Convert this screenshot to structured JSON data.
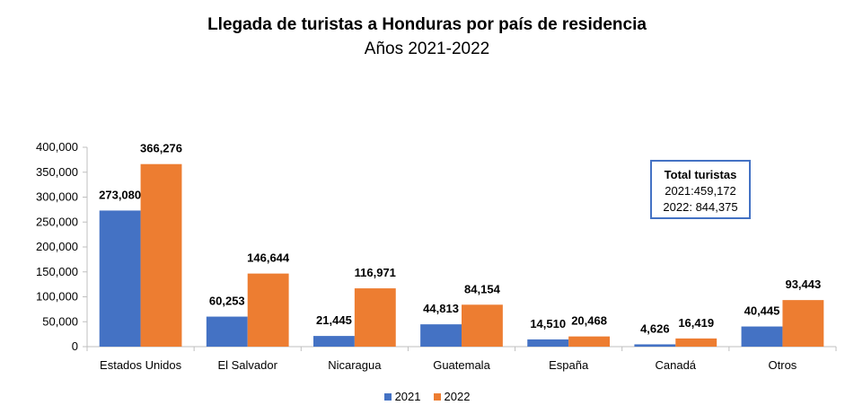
{
  "chart_data": {
    "type": "bar",
    "title": "Llegada de turistas a Honduras por país de residencia",
    "subtitle": "Años 2021-2022",
    "xlabel": "",
    "ylabel": "",
    "ylim": [
      0,
      400000
    ],
    "yticks": [
      0,
      50000,
      100000,
      150000,
      200000,
      250000,
      300000,
      350000,
      400000
    ],
    "ytick_labels": [
      "0",
      "50,000",
      "100,000",
      "150,000",
      "200,000",
      "250,000",
      "300,000",
      "350,000",
      "400,000"
    ],
    "categories": [
      "Estados Unidos",
      "El Salvador",
      "Nicaragua",
      "Guatemala",
      "España",
      "Canadá",
      "Otros"
    ],
    "series": [
      {
        "name": "2021",
        "color": "#4472C4",
        "values": [
          273080,
          60253,
          21445,
          44813,
          14510,
          4626,
          40445
        ],
        "labels": [
          "273,080",
          "60,253",
          "21,445",
          "44,813",
          "14,510",
          "4,626",
          "40,445"
        ]
      },
      {
        "name": "2022",
        "color": "#ED7D31",
        "values": [
          366276,
          146644,
          116971,
          84154,
          20468,
          16419,
          93443
        ],
        "labels": [
          "366,276",
          "146,644",
          "116,971",
          "84,154",
          "20,468",
          "16,419",
          "93,443"
        ]
      }
    ],
    "grid": false,
    "legend": "bottom",
    "annotation": {
      "title": "Total turistas",
      "line1": "2021:459,172",
      "line2": "2022: 844,375",
      "border_color": "#4472C4"
    }
  }
}
